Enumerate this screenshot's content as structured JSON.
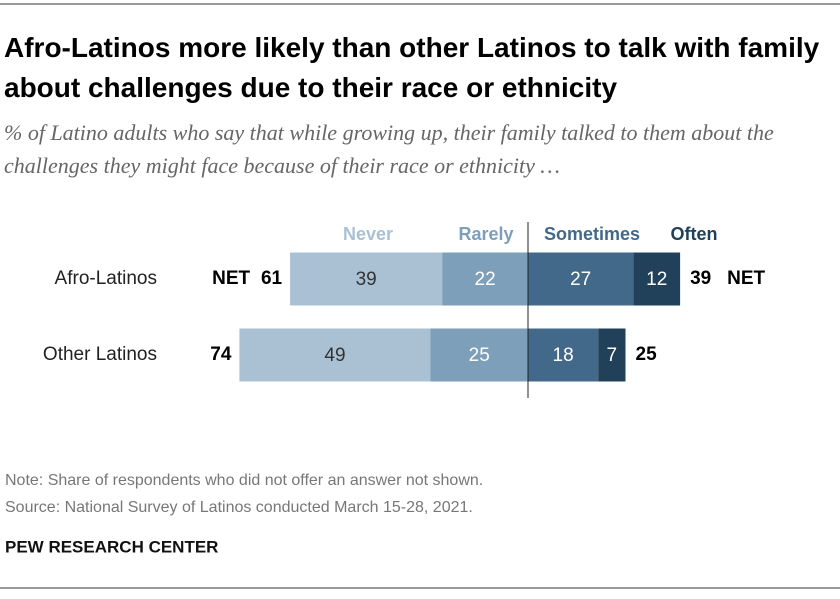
{
  "chart_data": {
    "type": "diverging_bar",
    "title": "Afro-Latinos more likely than other Latinos to talk with family about challenges due to their race or ethnicity",
    "subtitle": "% of Latino adults who say that while growing up, their family talked to them about the challenges they might face because of their race or ethnicity …",
    "categories": [
      "Afro-Latinos",
      "Other Latinos"
    ],
    "series": [
      {
        "name": "Never",
        "color": "#a9c1d3",
        "side": "left",
        "values": [
          39,
          49
        ]
      },
      {
        "name": "Rarely",
        "color": "#7d9fb9",
        "side": "left",
        "values": [
          22,
          25
        ]
      },
      {
        "name": "Sometimes",
        "color": "#43698a",
        "side": "right",
        "values": [
          27,
          18
        ]
      },
      {
        "name": "Often",
        "color": "#21405a",
        "side": "right",
        "values": [
          12,
          7
        ]
      }
    ],
    "net_label": "NET",
    "net_left": [
      61,
      74
    ],
    "net_right": [
      39,
      25
    ],
    "note": "Note: Share of respondents who did not offer an answer not shown.",
    "source": "Source: National Survey of Latinos conducted March 15-28, 2021.",
    "footer": "PEW RESEARCH CENTER"
  }
}
